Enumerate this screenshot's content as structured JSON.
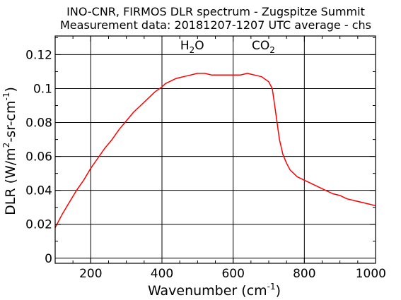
{
  "chart_data": {
    "type": "line",
    "title": "INO-CNR, FIRMOS DLR spectrum - Zugspitze Summit",
    "subtitle": "Measurement data: 20181207-1207 UTC average - chs",
    "xlabel": {
      "base": "Wavenumber (cm",
      "sup": "-1",
      "tail": ")"
    },
    "ylabel": {
      "a": "DLR (W/m",
      "sup1": "2",
      "b": "-sr-cm",
      "sup2": "-1",
      "c": ")"
    },
    "xlim": [
      100,
      1000
    ],
    "ylim": [
      -0.003,
      0.131
    ],
    "x_ticks": [
      200,
      400,
      600,
      800,
      1000
    ],
    "x_tick_labels": [
      "200",
      "400",
      "600",
      "800",
      "1000"
    ],
    "y_ticks": [
      0,
      0.02,
      0.04,
      0.06,
      0.08,
      0.1,
      0.12
    ],
    "y_tick_labels": [
      "0",
      "0.02",
      "0.04",
      "0.06",
      "0.08",
      "0.1",
      "0.12"
    ],
    "grid": true,
    "colors": {
      "line": "#ff0000",
      "axes": "#000000",
      "grid": "#000000"
    },
    "annotations": [
      {
        "text": "H",
        "sub": "2",
        "tail": "O",
        "x": 485,
        "y": 0.123
      },
      {
        "text": "CO",
        "sub": "2",
        "tail": "",
        "x": 685,
        "y": 0.123
      }
    ],
    "series": [
      {
        "x": [
          100,
          120,
          140,
          160,
          180,
          200,
          220,
          240,
          260,
          280,
          300,
          320,
          340,
          360,
          380,
          400,
          410,
          420,
          440,
          460,
          480,
          500,
          520,
          540,
          560,
          580,
          600,
          620,
          640,
          660,
          680,
          700,
          710,
          720,
          730,
          740,
          750,
          760,
          780,
          800,
          820,
          840,
          860,
          880,
          900,
          920,
          940,
          960,
          980,
          1000
        ],
        "y": [
          0.018,
          0.026,
          0.033,
          0.04,
          0.046,
          0.053,
          0.059,
          0.065,
          0.07,
          0.076,
          0.081,
          0.086,
          0.09,
          0.094,
          0.098,
          0.101,
          0.103,
          0.104,
          0.106,
          0.107,
          0.108,
          0.109,
          0.109,
          0.108,
          0.108,
          0.108,
          0.108,
          0.108,
          0.109,
          0.108,
          0.107,
          0.104,
          0.1,
          0.085,
          0.07,
          0.061,
          0.056,
          0.052,
          0.048,
          0.046,
          0.044,
          0.042,
          0.04,
          0.038,
          0.037,
          0.035,
          0.034,
          0.033,
          0.032,
          0.031
        ]
      }
    ]
  }
}
